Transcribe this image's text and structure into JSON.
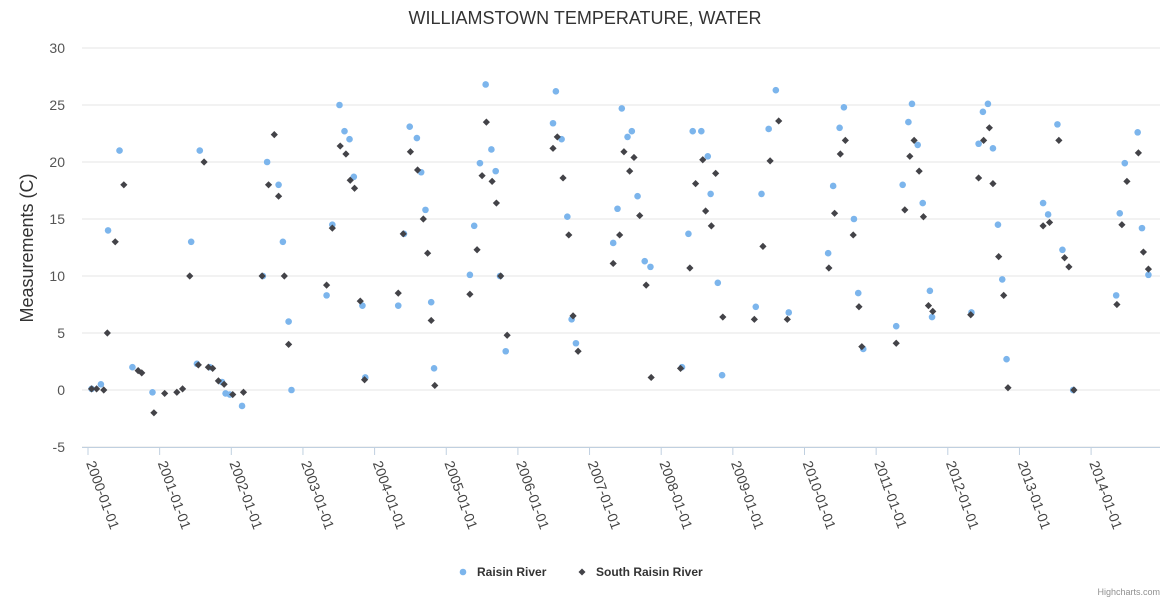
{
  "chart_data": {
    "type": "scatter",
    "title": "WILLIAMSTOWN TEMPERATURE, WATER",
    "xlabel": "",
    "ylabel": "Measurements (C)",
    "ylim": [
      -5,
      30
    ],
    "yticks": [
      -5,
      0,
      5,
      10,
      15,
      20,
      25,
      30
    ],
    "xlim": [
      2000.0,
      2014.85
    ],
    "xticks": [
      {
        "value": 2000.0,
        "label": "2000-01-01"
      },
      {
        "value": 2001.0,
        "label": "2001-01-01"
      },
      {
        "value": 2002.0,
        "label": "2002-01-01"
      },
      {
        "value": 2003.0,
        "label": "2003-01-01"
      },
      {
        "value": 2004.0,
        "label": "2004-01-01"
      },
      {
        "value": 2005.0,
        "label": "2005-01-01"
      },
      {
        "value": 2006.0,
        "label": "2006-01-01"
      },
      {
        "value": 2007.0,
        "label": "2007-01-01"
      },
      {
        "value": 2008.0,
        "label": "2008-01-01"
      },
      {
        "value": 2009.0,
        "label": "2009-01-01"
      },
      {
        "value": 2010.0,
        "label": "2010-01-01"
      },
      {
        "value": 2011.0,
        "label": "2011-01-01"
      },
      {
        "value": 2012.0,
        "label": "2012-01-01"
      },
      {
        "value": 2013.0,
        "label": "2013-01-01"
      },
      {
        "value": 2014.0,
        "label": "2014-01-01"
      }
    ],
    "grid": true,
    "legend_position": "bottom-center",
    "series": [
      {
        "name": "Raisin River",
        "color": "#7cb5ec",
        "marker": "circle",
        "points": [
          [
            2000.05,
            0.1
          ],
          [
            2000.18,
            0.5
          ],
          [
            2000.28,
            14.0
          ],
          [
            2000.44,
            21.0
          ],
          [
            2000.62,
            2.0
          ],
          [
            2000.9,
            -0.2
          ],
          [
            2001.44,
            13.0
          ],
          [
            2001.52,
            2.3
          ],
          [
            2001.56,
            21.0
          ],
          [
            2001.7,
            2.0
          ],
          [
            2001.87,
            0.7
          ],
          [
            2001.92,
            -0.3
          ],
          [
            2001.98,
            -0.4
          ],
          [
            2002.15,
            -1.4
          ],
          [
            2002.44,
            10.0
          ],
          [
            2002.5,
            20.0
          ],
          [
            2002.66,
            18.0
          ],
          [
            2002.72,
            13.0
          ],
          [
            2002.8,
            6.0
          ],
          [
            2002.84,
            0.0
          ],
          [
            2003.33,
            8.3
          ],
          [
            2003.41,
            14.5
          ],
          [
            2003.51,
            25.0
          ],
          [
            2003.58,
            22.7
          ],
          [
            2003.65,
            22.0
          ],
          [
            2003.71,
            18.7
          ],
          [
            2003.83,
            7.4
          ],
          [
            2003.87,
            1.1
          ],
          [
            2004.33,
            7.4
          ],
          [
            2004.41,
            13.7
          ],
          [
            2004.49,
            23.1
          ],
          [
            2004.59,
            22.1
          ],
          [
            2004.65,
            19.1
          ],
          [
            2004.71,
            15.8
          ],
          [
            2004.79,
            7.7
          ],
          [
            2004.83,
            1.9
          ],
          [
            2005.33,
            10.1
          ],
          [
            2005.39,
            14.4
          ],
          [
            2005.47,
            19.9
          ],
          [
            2005.55,
            26.8
          ],
          [
            2005.63,
            21.1
          ],
          [
            2005.69,
            19.2
          ],
          [
            2005.75,
            10.0
          ],
          [
            2005.83,
            3.4
          ],
          [
            2006.49,
            23.4
          ],
          [
            2006.53,
            26.2
          ],
          [
            2006.61,
            22.0
          ],
          [
            2006.69,
            15.2
          ],
          [
            2006.75,
            6.2
          ],
          [
            2006.81,
            4.1
          ],
          [
            2007.33,
            12.9
          ],
          [
            2007.39,
            15.9
          ],
          [
            2007.45,
            24.7
          ],
          [
            2007.53,
            22.2
          ],
          [
            2007.59,
            22.7
          ],
          [
            2007.67,
            17.0
          ],
          [
            2007.77,
            11.3
          ],
          [
            2007.85,
            10.8
          ],
          [
            2008.29,
            2.0
          ],
          [
            2008.38,
            13.7
          ],
          [
            2008.44,
            22.7
          ],
          [
            2008.56,
            22.7
          ],
          [
            2008.65,
            20.5
          ],
          [
            2008.69,
            17.2
          ],
          [
            2008.79,
            9.4
          ],
          [
            2008.85,
            1.3
          ],
          [
            2009.32,
            7.3
          ],
          [
            2009.4,
            17.2
          ],
          [
            2009.5,
            22.9
          ],
          [
            2009.6,
            26.3
          ],
          [
            2009.78,
            6.8
          ],
          [
            2010.33,
            12.0
          ],
          [
            2010.4,
            17.9
          ],
          [
            2010.49,
            23.0
          ],
          [
            2010.55,
            24.8
          ],
          [
            2010.69,
            15.0
          ],
          [
            2010.75,
            8.5
          ],
          [
            2010.82,
            3.6
          ],
          [
            2011.28,
            5.6
          ],
          [
            2011.37,
            18.0
          ],
          [
            2011.45,
            23.5
          ],
          [
            2011.5,
            25.1
          ],
          [
            2011.58,
            21.5
          ],
          [
            2011.65,
            16.4
          ],
          [
            2011.75,
            8.7
          ],
          [
            2011.78,
            6.4
          ],
          [
            2012.33,
            6.8
          ],
          [
            2012.43,
            21.6
          ],
          [
            2012.49,
            24.4
          ],
          [
            2012.56,
            25.1
          ],
          [
            2012.63,
            21.2
          ],
          [
            2012.7,
            14.5
          ],
          [
            2012.76,
            9.7
          ],
          [
            2012.82,
            2.7
          ],
          [
            2013.33,
            16.4
          ],
          [
            2013.4,
            15.4
          ],
          [
            2013.53,
            23.3
          ],
          [
            2013.6,
            12.3
          ],
          [
            2013.75,
            0.0
          ],
          [
            2014.35,
            8.3
          ],
          [
            2014.4,
            15.5
          ],
          [
            2014.47,
            19.9
          ],
          [
            2014.65,
            22.6
          ],
          [
            2014.71,
            14.2
          ],
          [
            2014.8,
            10.1
          ]
        ]
      },
      {
        "name": "South Raisin River",
        "color": "#434348",
        "marker": "diamond",
        "points": [
          [
            2000.05,
            0.1
          ],
          [
            2000.12,
            0.1
          ],
          [
            2000.22,
            0.0
          ],
          [
            2000.27,
            5.0
          ],
          [
            2000.38,
            13.0
          ],
          [
            2000.5,
            18.0
          ],
          [
            2000.7,
            1.7
          ],
          [
            2000.75,
            1.5
          ],
          [
            2000.92,
            -2.0
          ],
          [
            2001.07,
            -0.3
          ],
          [
            2001.24,
            -0.2
          ],
          [
            2001.32,
            0.1
          ],
          [
            2001.42,
            10.0
          ],
          [
            2001.54,
            2.2
          ],
          [
            2001.62,
            20.0
          ],
          [
            2001.68,
            2.0
          ],
          [
            2001.74,
            1.9
          ],
          [
            2001.82,
            0.8
          ],
          [
            2001.9,
            0.5
          ],
          [
            2002.02,
            -0.4
          ],
          [
            2002.17,
            -0.2
          ],
          [
            2002.43,
            10.0
          ],
          [
            2002.52,
            18.0
          ],
          [
            2002.6,
            22.4
          ],
          [
            2002.66,
            17.0
          ],
          [
            2002.74,
            10.0
          ],
          [
            2002.8,
            4.0
          ],
          [
            2003.33,
            9.2
          ],
          [
            2003.41,
            14.2
          ],
          [
            2003.52,
            21.4
          ],
          [
            2003.6,
            20.7
          ],
          [
            2003.66,
            18.4
          ],
          [
            2003.72,
            17.7
          ],
          [
            2003.8,
            7.8
          ],
          [
            2003.86,
            0.9
          ],
          [
            2004.33,
            8.5
          ],
          [
            2004.4,
            13.7
          ],
          [
            2004.5,
            20.9
          ],
          [
            2004.6,
            19.3
          ],
          [
            2004.68,
            15.0
          ],
          [
            2004.74,
            12.0
          ],
          [
            2004.79,
            6.1
          ],
          [
            2004.84,
            0.4
          ],
          [
            2005.33,
            8.4
          ],
          [
            2005.43,
            12.3
          ],
          [
            2005.5,
            18.8
          ],
          [
            2005.56,
            23.5
          ],
          [
            2005.64,
            18.3
          ],
          [
            2005.7,
            16.4
          ],
          [
            2005.76,
            10.0
          ],
          [
            2005.85,
            4.8
          ],
          [
            2006.49,
            21.2
          ],
          [
            2006.55,
            22.2
          ],
          [
            2006.63,
            18.6
          ],
          [
            2006.71,
            13.6
          ],
          [
            2006.77,
            6.5
          ],
          [
            2006.84,
            3.4
          ],
          [
            2007.33,
            11.1
          ],
          [
            2007.42,
            13.6
          ],
          [
            2007.48,
            20.9
          ],
          [
            2007.56,
            19.2
          ],
          [
            2007.62,
            20.4
          ],
          [
            2007.7,
            15.3
          ],
          [
            2007.79,
            9.2
          ],
          [
            2007.86,
            1.1
          ],
          [
            2008.27,
            1.9
          ],
          [
            2008.4,
            10.7
          ],
          [
            2008.48,
            18.1
          ],
          [
            2008.58,
            20.2
          ],
          [
            2008.62,
            15.7
          ],
          [
            2008.7,
            14.4
          ],
          [
            2008.76,
            19.0
          ],
          [
            2008.86,
            6.4
          ],
          [
            2009.3,
            6.2
          ],
          [
            2009.42,
            12.6
          ],
          [
            2009.52,
            20.1
          ],
          [
            2009.64,
            23.6
          ],
          [
            2009.76,
            6.2
          ],
          [
            2010.34,
            10.7
          ],
          [
            2010.42,
            15.5
          ],
          [
            2010.5,
            20.7
          ],
          [
            2010.57,
            21.9
          ],
          [
            2010.68,
            13.6
          ],
          [
            2010.76,
            7.3
          ],
          [
            2010.8,
            3.8
          ],
          [
            2011.28,
            4.1
          ],
          [
            2011.4,
            15.8
          ],
          [
            2011.47,
            20.5
          ],
          [
            2011.53,
            21.9
          ],
          [
            2011.6,
            19.2
          ],
          [
            2011.66,
            15.2
          ],
          [
            2011.73,
            7.4
          ],
          [
            2011.79,
            6.9
          ],
          [
            2012.32,
            6.6
          ],
          [
            2012.43,
            18.6
          ],
          [
            2012.5,
            21.9
          ],
          [
            2012.58,
            23.0
          ],
          [
            2012.63,
            18.1
          ],
          [
            2012.71,
            11.7
          ],
          [
            2012.78,
            8.3
          ],
          [
            2012.84,
            0.2
          ],
          [
            2013.33,
            14.4
          ],
          [
            2013.42,
            14.7
          ],
          [
            2013.55,
            21.9
          ],
          [
            2013.63,
            11.6
          ],
          [
            2013.69,
            10.8
          ],
          [
            2013.76,
            0.0
          ],
          [
            2014.36,
            7.5
          ],
          [
            2014.43,
            14.5
          ],
          [
            2014.5,
            18.3
          ],
          [
            2014.66,
            20.8
          ],
          [
            2014.73,
            12.1
          ],
          [
            2014.8,
            10.6
          ]
        ]
      }
    ]
  },
  "credits": "Highcharts.com"
}
